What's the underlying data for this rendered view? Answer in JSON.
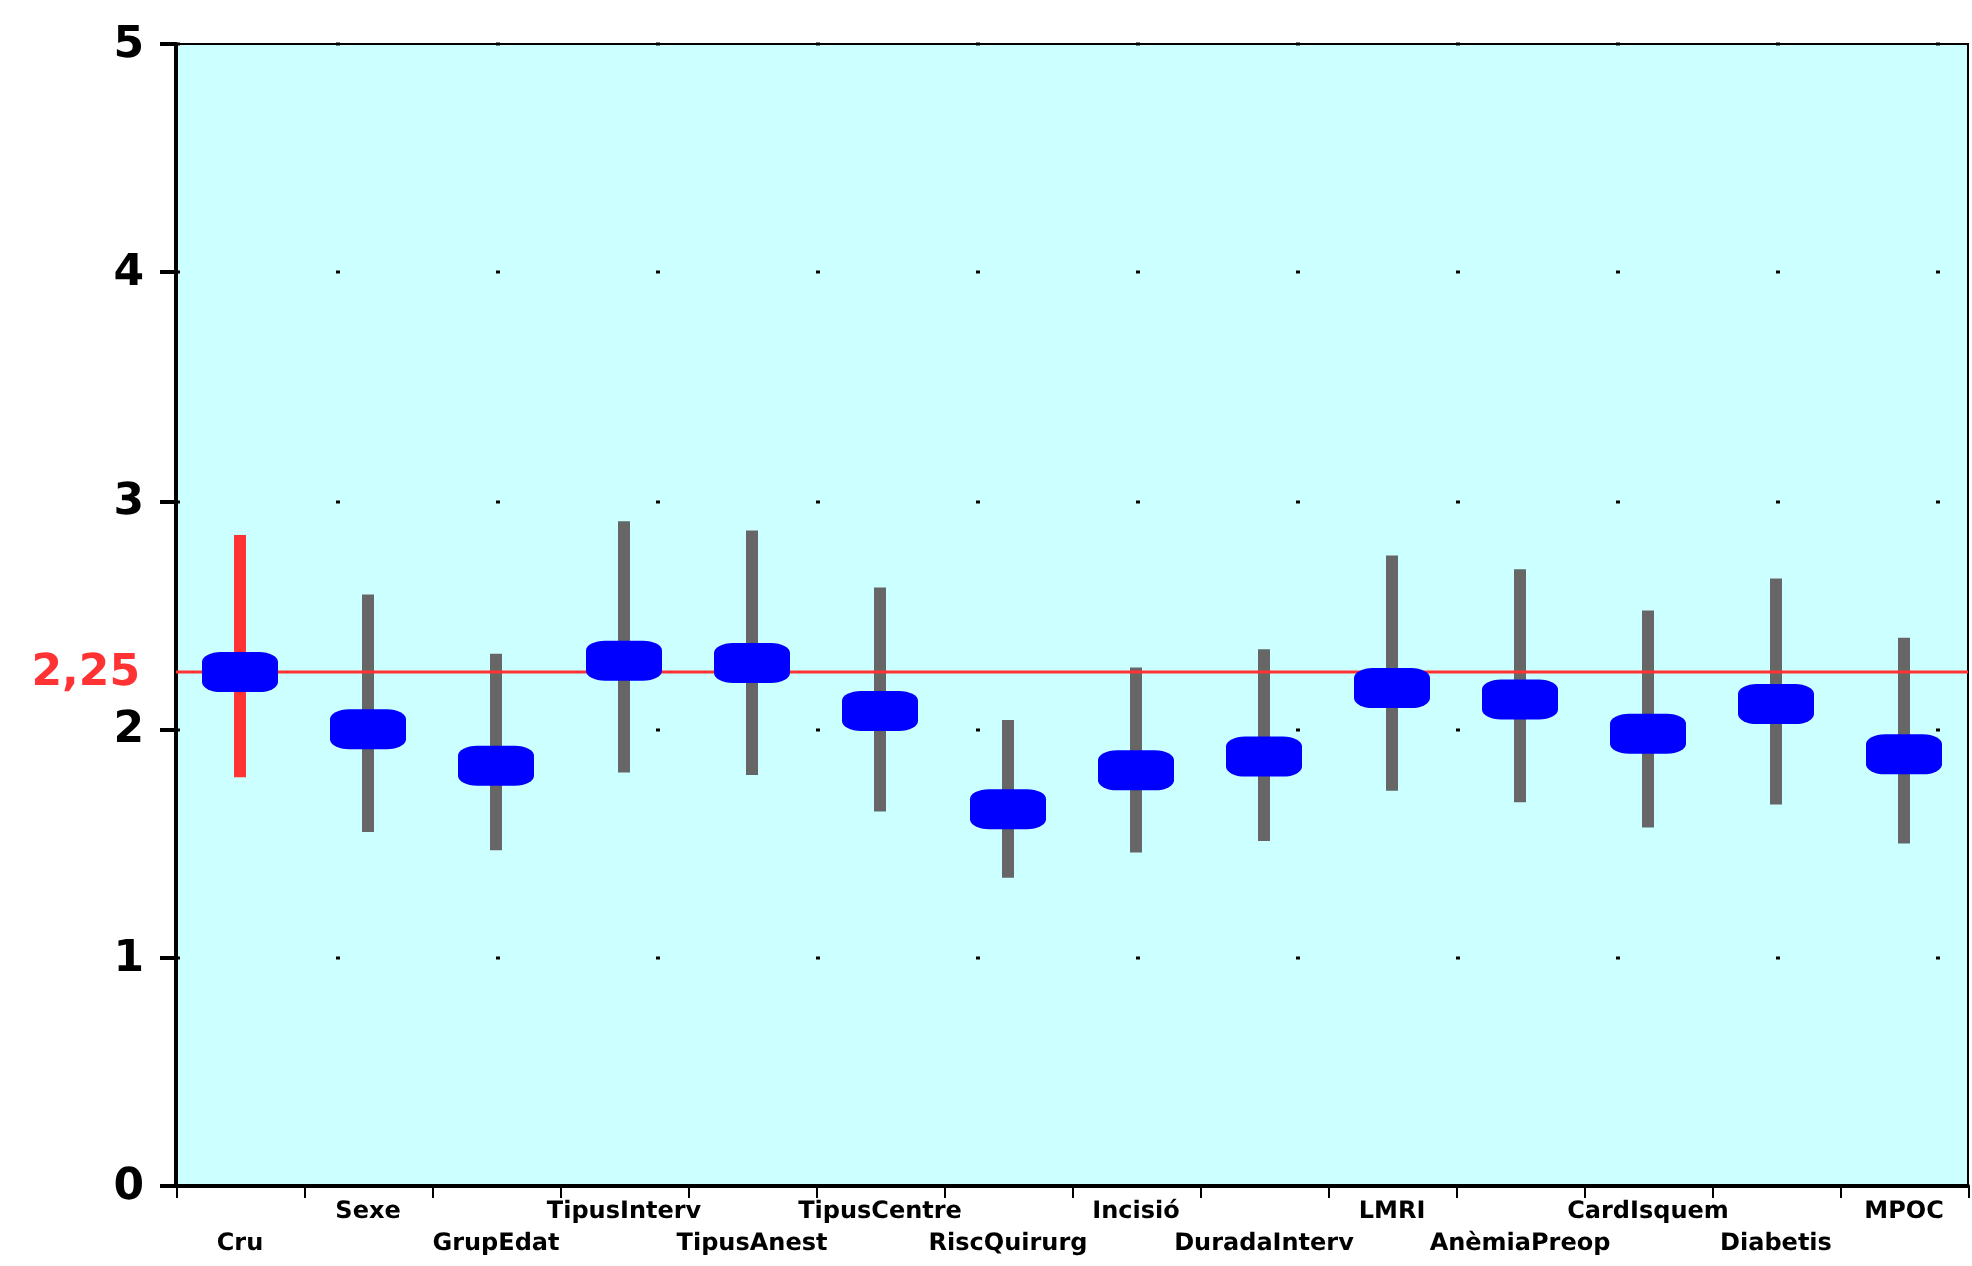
{
  "chart_data": {
    "type": "scatter",
    "categories": [
      "Cru",
      "Sexe",
      "GrupEdat",
      "TipusInterv",
      "TipusAnest",
      "TipusCentre",
      "RiscQuirurg",
      "Incisió",
      "DuradaInterv",
      "LMRI",
      "AnèmiaPreop",
      "CardIsquem",
      "Diabetis",
      "MPOC"
    ],
    "series": [
      {
        "color": "#0000ff",
        "values": [
          2.25,
          2.0,
          1.84,
          2.3,
          2.29,
          2.08,
          1.65,
          1.82,
          1.88,
          2.18,
          2.13,
          1.98,
          2.11,
          1.89
        ],
        "errors": [
          [
            1.79,
            2.85
          ],
          [
            1.55,
            2.59
          ],
          [
            1.47,
            2.33
          ],
          [
            1.81,
            2.91
          ],
          [
            1.8,
            2.87
          ],
          [
            1.64,
            2.62
          ],
          [
            1.35,
            2.04
          ],
          [
            1.46,
            2.27
          ],
          [
            1.51,
            2.35
          ],
          [
            1.73,
            2.76
          ],
          [
            1.68,
            2.7
          ],
          [
            1.57,
            2.52
          ],
          [
            1.67,
            2.66
          ],
          [
            1.5,
            2.4
          ]
        ]
      }
    ],
    "ylim": [
      0,
      5
    ],
    "yticks": [
      0,
      1,
      2,
      3,
      4,
      5
    ],
    "ref_lines": [
      {
        "axis": "y",
        "value": 2.25,
        "label": "2,25",
        "color": "#ff3333"
      }
    ],
    "grid": "y",
    "marker": "square"
  }
}
